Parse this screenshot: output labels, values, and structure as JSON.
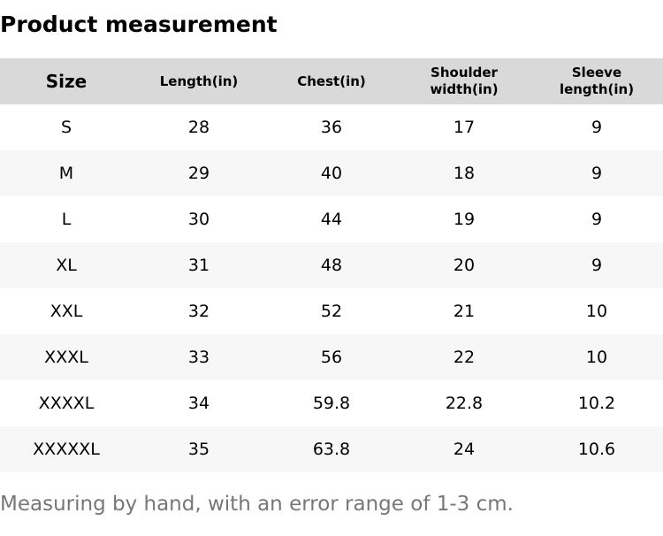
{
  "title": "Product measurement",
  "table": {
    "header": [
      "Size",
      "Length(in)",
      "Chest(in)",
      "Shoulder width(in)",
      "Sleeve length(in)"
    ],
    "rows": [
      [
        "S",
        28,
        36,
        17,
        9
      ],
      [
        "M",
        29,
        40,
        18,
        9
      ],
      [
        "L",
        30,
        44,
        19,
        9
      ],
      [
        "XL",
        31,
        48,
        20,
        9
      ],
      [
        "XXL",
        32,
        52,
        21,
        10
      ],
      [
        "XXXL",
        33,
        56,
        22,
        10
      ],
      [
        "XXXXL",
        34,
        59.8,
        22.8,
        10.2
      ],
      [
        "XXXXXL",
        35,
        63.8,
        24,
        10.6
      ]
    ]
  },
  "note": "Measuring by hand, with an error range of 1-3 cm."
}
